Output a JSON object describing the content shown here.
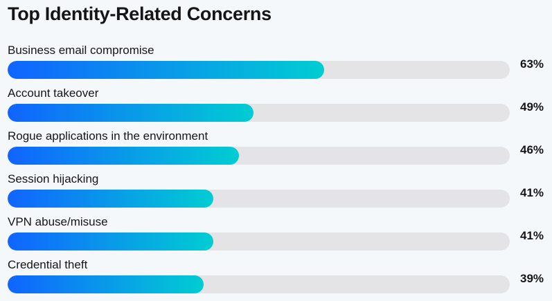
{
  "title": "Top Identity-Related Concerns",
  "colors": {
    "gradient_start": "#1064ff",
    "gradient_end": "#00cdd2",
    "track": "#e4e4e6",
    "background": "#f5f8fb",
    "text": "#151515"
  },
  "chart_data": {
    "type": "bar",
    "orientation": "horizontal",
    "title": "Top Identity-Related Concerns",
    "xlim": [
      0,
      100
    ],
    "grid": false,
    "legend": "none",
    "categories": [
      "Business email compromise",
      "Account takeover",
      "Rogue applications in the environment",
      "Session hijacking",
      "VPN abuse/misuse",
      "Credential theft"
    ],
    "values": [
      63,
      49,
      46,
      41,
      41,
      39
    ],
    "value_labels": [
      "63%",
      "49%",
      "46%",
      "41%",
      "41%",
      "39%"
    ]
  }
}
